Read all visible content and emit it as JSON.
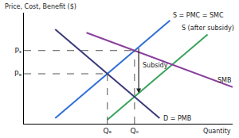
{
  "chart_data": {
    "type": "line",
    "xlabel": "Quantity",
    "ylabel": "Price, Cost, Benefit ($)",
    "xlim": [
      0,
      10
    ],
    "ylim": [
      0,
      10
    ],
    "xticks": [
      {
        "value": 4,
        "label": "Qₑ"
      },
      {
        "value": 5.3,
        "label": "Qₒ"
      }
    ],
    "yticks": [
      {
        "value": 4.5,
        "label": "Pₑ"
      },
      {
        "value": 6.59,
        "label": "Pₛ"
      }
    ],
    "grid": false,
    "series": [
      {
        "name": "S = PMC = SMC",
        "color": "#2f6fd6",
        "x": [
          1.5,
          7
        ],
        "values": [
          0.5,
          9.3
        ]
      },
      {
        "name": "S (after subsidy)",
        "color": "#3aa35c",
        "x": [
          4,
          8.8
        ],
        "values": [
          0.35,
          8.03
        ]
      },
      {
        "name": "SMB",
        "color": "#8a3f9e",
        "x": [
          3,
          10
        ],
        "values": [
          8.2,
          3.3
        ]
      },
      {
        "name": "D = PMB",
        "color": "#3b3a7a",
        "x": [
          1.5,
          6.5
        ],
        "values": [
          8.5,
          0.5
        ]
      },
      {
        "color": "#555555",
        "line_style": "dash",
        "x": [
          0,
          5.3
        ],
        "values": [
          6.59,
          6.59
        ]
      },
      {
        "color": "#555555",
        "line_style": "dash",
        "x": [
          0,
          4
        ],
        "values": [
          4.5,
          4.5
        ]
      },
      {
        "color": "#555555",
        "line_style": "dash",
        "x": [
          4,
          4
        ],
        "values": [
          0,
          4.5
        ]
      },
      {
        "color": "#555555",
        "line_style": "dash",
        "x": [
          5.3,
          5.3
        ],
        "values": [
          0,
          6.59
        ]
      }
    ],
    "annotations": [
      {
        "text": "Subsidy",
        "x": 5.5,
        "y": [
          6.9,
          2.75
        ]
      }
    ]
  }
}
